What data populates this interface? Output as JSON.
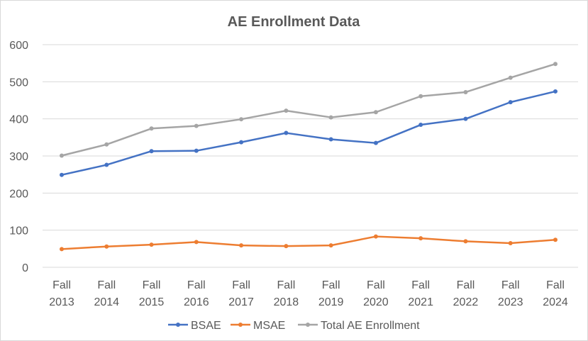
{
  "chart_data": {
    "type": "line",
    "title": "AE Enrollment Data",
    "categories": [
      [
        "Fall",
        "2013"
      ],
      [
        "Fall",
        "2014"
      ],
      [
        "Fall",
        "2015"
      ],
      [
        "Fall",
        "2016"
      ],
      [
        "Fall",
        "2017"
      ],
      [
        "Fall",
        "2018"
      ],
      [
        "Fall",
        "2019"
      ],
      [
        "Fall",
        "2020"
      ],
      [
        "Fall",
        "2021"
      ],
      [
        "Fall",
        "2022"
      ],
      [
        "Fall",
        "2023"
      ],
      [
        "Fall",
        "2024"
      ]
    ],
    "ylim": [
      0,
      600
    ],
    "yticks": [
      0,
      100,
      200,
      300,
      400,
      500,
      600
    ],
    "grid": true,
    "legend": "bottom",
    "series": [
      {
        "name": "BSAE",
        "color": "#4472C4",
        "values": [
          249,
          276,
          313,
          314,
          337,
          362,
          345,
          335,
          384,
          400,
          445,
          474
        ]
      },
      {
        "name": "MSAE",
        "color": "#ED7D31",
        "values": [
          49,
          56,
          61,
          68,
          59,
          57,
          59,
          83,
          78,
          70,
          65,
          74
        ]
      },
      {
        "name": "Total AE Enrollment",
        "color": "#A5A5A5",
        "values": [
          301,
          331,
          374,
          381,
          399,
          422,
          404,
          418,
          461,
          472,
          511,
          548
        ]
      }
    ]
  }
}
